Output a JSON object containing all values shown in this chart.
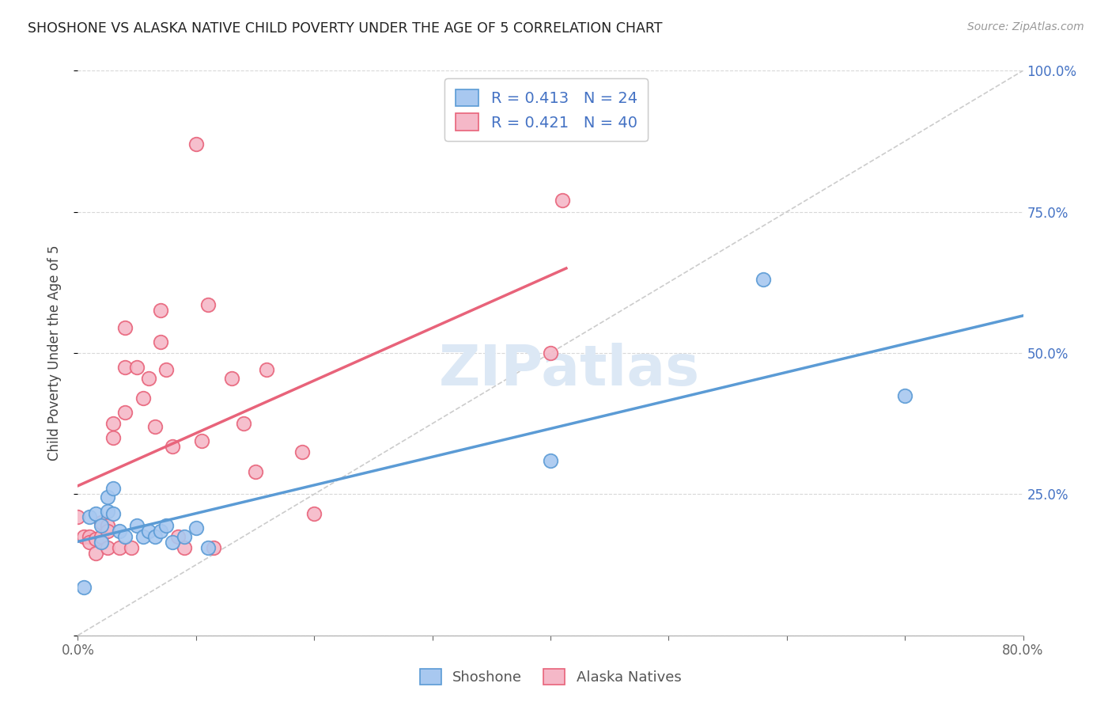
{
  "title": "SHOSHONE VS ALASKA NATIVE CHILD POVERTY UNDER THE AGE OF 5 CORRELATION CHART",
  "source": "Source: ZipAtlas.com",
  "ylabel": "Child Poverty Under the Age of 5",
  "xlim": [
    0.0,
    0.8
  ],
  "ylim": [
    0.0,
    1.0
  ],
  "xticks": [
    0.0,
    0.1,
    0.2,
    0.3,
    0.4,
    0.5,
    0.6,
    0.7,
    0.8
  ],
  "xticklabels": [
    "0.0%",
    "",
    "",
    "",
    "",
    "",
    "",
    "",
    "80.0%"
  ],
  "yticks": [
    0.0,
    0.25,
    0.5,
    0.75,
    1.0
  ],
  "yticklabels_right": [
    "",
    "25.0%",
    "50.0%",
    "75.0%",
    "100.0%"
  ],
  "shoshone_color": "#a8c8f0",
  "alaska_color": "#f5b8c8",
  "shoshone_edge_color": "#5b9bd5",
  "alaska_edge_color": "#e8637a",
  "shoshone_trendline_color": "#5b9bd5",
  "alaska_trendline_color": "#e8637a",
  "diagonal_color": "#cccccc",
  "legend_text_color": "#4472c4",
  "shoshone_R": 0.413,
  "shoshone_N": 24,
  "alaska_R": 0.421,
  "alaska_N": 40,
  "shoshone_x": [
    0.005,
    0.01,
    0.015,
    0.02,
    0.02,
    0.025,
    0.025,
    0.03,
    0.03,
    0.035,
    0.04,
    0.05,
    0.055,
    0.06,
    0.065,
    0.07,
    0.075,
    0.08,
    0.09,
    0.1,
    0.11,
    0.4,
    0.58,
    0.7
  ],
  "shoshone_y": [
    0.085,
    0.21,
    0.215,
    0.195,
    0.165,
    0.245,
    0.22,
    0.26,
    0.215,
    0.185,
    0.175,
    0.195,
    0.175,
    0.185,
    0.175,
    0.185,
    0.195,
    0.165,
    0.175,
    0.19,
    0.155,
    0.31,
    0.63,
    0.425
  ],
  "alaska_x": [
    0.0,
    0.005,
    0.01,
    0.01,
    0.015,
    0.015,
    0.02,
    0.02,
    0.025,
    0.025,
    0.025,
    0.03,
    0.03,
    0.035,
    0.04,
    0.04,
    0.04,
    0.045,
    0.05,
    0.055,
    0.06,
    0.065,
    0.07,
    0.07,
    0.075,
    0.08,
    0.085,
    0.09,
    0.1,
    0.105,
    0.11,
    0.115,
    0.13,
    0.14,
    0.15,
    0.16,
    0.19,
    0.2,
    0.4,
    0.41
  ],
  "alaska_y": [
    0.21,
    0.175,
    0.175,
    0.165,
    0.17,
    0.145,
    0.2,
    0.175,
    0.195,
    0.185,
    0.155,
    0.375,
    0.35,
    0.155,
    0.545,
    0.475,
    0.395,
    0.155,
    0.475,
    0.42,
    0.455,
    0.37,
    0.575,
    0.52,
    0.47,
    0.335,
    0.175,
    0.155,
    0.87,
    0.345,
    0.585,
    0.155,
    0.455,
    0.375,
    0.29,
    0.47,
    0.325,
    0.215,
    0.5,
    0.77
  ],
  "background_color": "#ffffff",
  "grid_color": "#d8d8d8",
  "watermark_text": "ZIPatlas",
  "watermark_color": "#dce8f5"
}
